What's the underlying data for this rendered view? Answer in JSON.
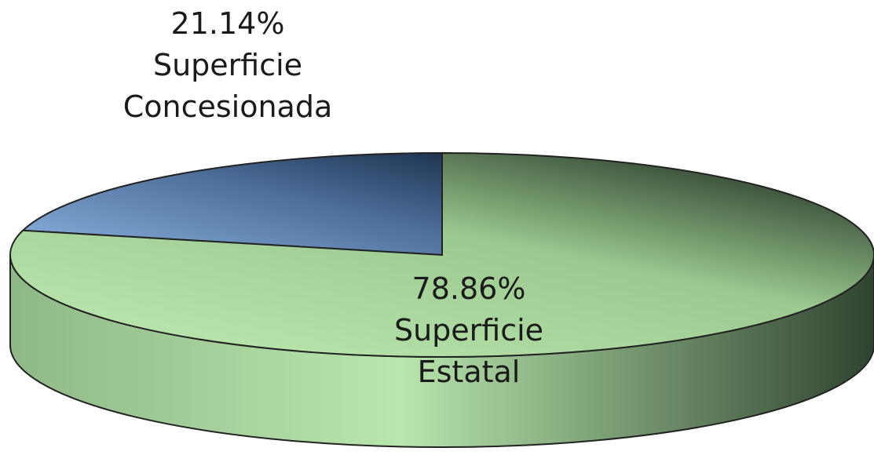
{
  "chart_data": {
    "type": "pie3d",
    "categories": [
      "Superficie Concesionada",
      "Superficie Estatal"
    ],
    "values": [
      21.14,
      78.86
    ],
    "value_labels": [
      "21.14%",
      "78.86%"
    ],
    "colors": [
      "#8db4e2",
      "#a8d89a"
    ]
  }
}
